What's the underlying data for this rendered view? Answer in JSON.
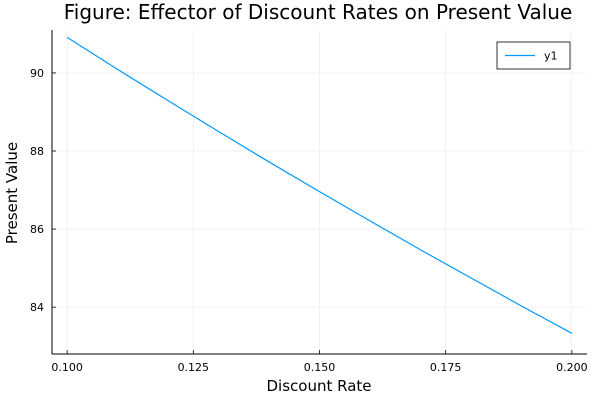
{
  "chart_data": {
    "type": "line",
    "title": "Figure: Effector of Discount Rates on Present Value",
    "xlabel": "Discount Rate",
    "ylabel": "Present Value",
    "xlim": [
      0.097,
      0.203
    ],
    "ylim": [
      82.8,
      91.1
    ],
    "xticks": [
      0.1,
      0.125,
      0.15,
      0.175,
      0.2
    ],
    "xtick_labels": [
      "0.100",
      "0.125",
      "0.150",
      "0.175",
      "0.200"
    ],
    "yticks": [
      84,
      86,
      88,
      90
    ],
    "ytick_labels": [
      "84",
      "86",
      "88",
      "90"
    ],
    "grid": true,
    "legend_position": "top-right",
    "series": [
      {
        "name": "y1",
        "color": "#009AFA",
        "x": [
          0.1,
          0.11,
          0.12,
          0.13,
          0.14,
          0.15,
          0.16,
          0.17,
          0.18,
          0.19,
          0.2
        ],
        "y": [
          90.91,
          90.09,
          89.29,
          88.5,
          87.72,
          86.96,
          86.21,
          85.47,
          84.75,
          84.03,
          83.33
        ]
      }
    ]
  }
}
